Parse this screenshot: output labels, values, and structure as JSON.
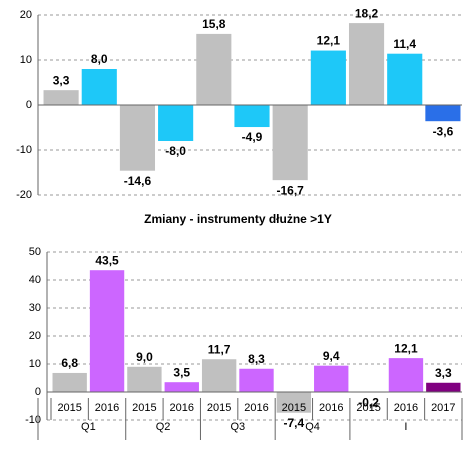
{
  "chart_data": [
    {
      "type": "bar",
      "categories": [
        null,
        null,
        null,
        null,
        null,
        null,
        null,
        null,
        null,
        null,
        null
      ],
      "values": [
        3.3,
        8.0,
        -14.6,
        -8.0,
        15.8,
        -4.9,
        -16.7,
        12.1,
        18.2,
        11.4,
        -3.6
      ],
      "value_labels": [
        "3,3",
        "8,0",
        "-14,6",
        "-8,0",
        "15,8",
        "-4,9",
        "-16,7",
        "12,1",
        "18,2",
        "11,4",
        "-3,6"
      ],
      "colors": [
        "#c0c0c0",
        "#1ec8f8",
        "#c0c0c0",
        "#1ec8f8",
        "#c0c0c0",
        "#1ec8f8",
        "#c0c0c0",
        "#1ec8f8",
        "#c0c0c0",
        "#1ec8f8",
        "#2a6fe8"
      ],
      "ylim": [
        -20,
        20
      ],
      "yticks": [
        -20,
        -10,
        0,
        10,
        20
      ],
      "grid": true
    },
    {
      "type": "bar",
      "title": "Zmiany - instrumenty dłużne >1Y",
      "categories": [
        "2015",
        "2016",
        "2015",
        "2016",
        "2015",
        "2016",
        "2015",
        "2016",
        "2015",
        "2016",
        "2017"
      ],
      "groups": [
        {
          "label": "Q1",
          "count": 2
        },
        {
          "label": "Q2",
          "count": 2
        },
        {
          "label": "Q3",
          "count": 2
        },
        {
          "label": "Q4",
          "count": 2
        },
        {
          "label": "I",
          "count": 3
        }
      ],
      "values": [
        6.8,
        43.5,
        9.0,
        3.5,
        11.7,
        8.3,
        -7.4,
        9.4,
        -0.2,
        12.1,
        3.3
      ],
      "value_labels": [
        "6,8",
        "43,5",
        "9,0",
        "3,5",
        "11,7",
        "8,3",
        "-7,4",
        "9,4",
        "-0,2",
        "12,1",
        "3,3"
      ],
      "colors": [
        "#c0c0c0",
        "#cc66ff",
        "#c0c0c0",
        "#cc66ff",
        "#c0c0c0",
        "#cc66ff",
        "#c0c0c0",
        "#cc66ff",
        "#c0c0c0",
        "#cc66ff",
        "#800080"
      ],
      "ylim": [
        -10,
        50
      ],
      "yticks": [
        -10,
        0,
        10,
        20,
        30,
        40,
        50
      ],
      "grid": true
    }
  ]
}
